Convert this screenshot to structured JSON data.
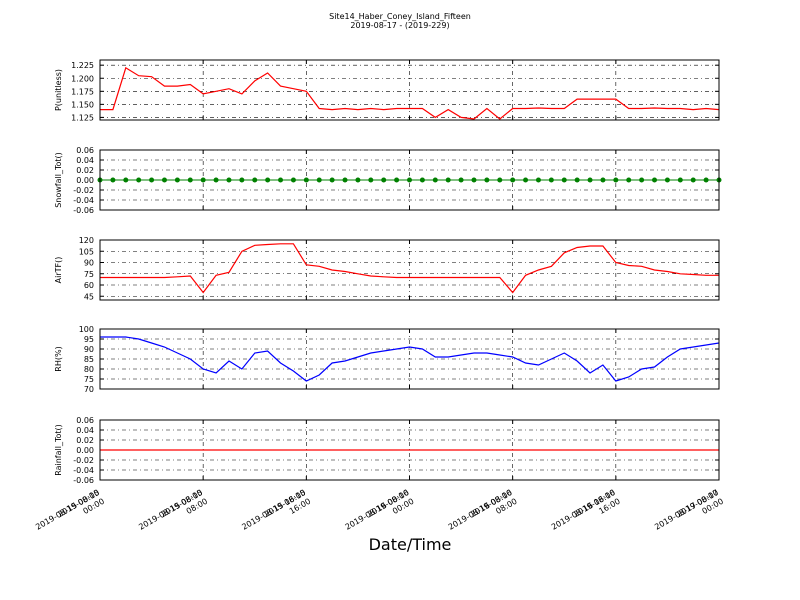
{
  "chart_data": [
    {
      "type": "line",
      "title": "Site14_Haber_Coney_Island_Fifteen",
      "subtitle": "2019-08-17 - (2019-229)",
      "ylabel": "P(unitless)",
      "x": [
        "2019-08-15 00:00",
        "2019-08-15 01:00",
        "2019-08-15 02:00",
        "2019-08-15 03:00",
        "2019-08-15 04:00",
        "2019-08-15 05:00",
        "2019-08-15 06:00",
        "2019-08-15 07:00",
        "2019-08-15 08:00",
        "2019-08-15 09:00",
        "2019-08-15 10:00",
        "2019-08-15 11:00",
        "2019-08-15 12:00",
        "2019-08-15 13:00",
        "2019-08-15 14:00",
        "2019-08-15 15:00",
        "2019-08-15 16:00",
        "2019-08-15 17:00",
        "2019-08-15 18:00",
        "2019-08-15 19:00",
        "2019-08-15 20:00",
        "2019-08-15 21:00",
        "2019-08-15 22:00",
        "2019-08-15 23:00",
        "2019-08-16 00:00",
        "2019-08-16 01:00",
        "2019-08-16 02:00",
        "2019-08-16 03:00",
        "2019-08-16 04:00",
        "2019-08-16 05:00",
        "2019-08-16 06:00",
        "2019-08-16 07:00",
        "2019-08-16 08:00",
        "2019-08-16 09:00",
        "2019-08-16 10:00",
        "2019-08-16 11:00",
        "2019-08-16 12:00",
        "2019-08-16 13:00",
        "2019-08-16 14:00",
        "2019-08-16 15:00",
        "2019-08-16 16:00",
        "2019-08-16 17:00",
        "2019-08-16 18:00",
        "2019-08-16 19:00",
        "2019-08-16 20:00",
        "2019-08-16 21:00",
        "2019-08-16 22:00",
        "2019-08-16 23:00",
        "2019-08-17 00:00"
      ],
      "series": [
        {
          "color": "#ff0000",
          "values": [
            1.14,
            1.14,
            1.22,
            1.205,
            1.203,
            1.185,
            1.185,
            1.188,
            1.17,
            1.175,
            1.18,
            1.17,
            1.195,
            1.21,
            1.185,
            1.18,
            1.175,
            1.142,
            1.14,
            1.142,
            1.14,
            1.142,
            1.14,
            1.142,
            1.142,
            1.142,
            1.125,
            1.14,
            1.125,
            1.122,
            1.142,
            1.122,
            1.142,
            1.142,
            1.143,
            1.142,
            1.142,
            1.16,
            1.16,
            1.16,
            1.16,
            1.142,
            1.142,
            1.143,
            1.142,
            1.142,
            1.14,
            1.142,
            1.14
          ]
        }
      ],
      "xlim": [
        "2019-08-15 00:00",
        "2019-08-17 00:00"
      ],
      "xticks": [
        "2019-08-15 00:00",
        "2019-08-15 08:00",
        "2019-08-15 16:00",
        "2019-08-16 00:00",
        "2019-08-16 08:00",
        "2019-08-16 16:00",
        "2019-08-17 00:00"
      ],
      "ylim": [
        1.12,
        1.235
      ],
      "yticks": [
        1.125,
        {
          "value": 1.15,
          "label": "1.150"
        },
        1.175,
        {
          "value": 1.2,
          "label": "1.200"
        },
        1.225
      ],
      "grid": true
    },
    {
      "type": "line",
      "ylabel": "Snowfall_Tot()",
      "marker": true,
      "x": [
        "2019-08-15 00:00",
        "2019-08-15 01:00",
        "2019-08-15 02:00",
        "2019-08-15 03:00",
        "2019-08-15 04:00",
        "2019-08-15 05:00",
        "2019-08-15 06:00",
        "2019-08-15 07:00",
        "2019-08-15 08:00",
        "2019-08-15 09:00",
        "2019-08-15 10:00",
        "2019-08-15 11:00",
        "2019-08-15 12:00",
        "2019-08-15 13:00",
        "2019-08-15 14:00",
        "2019-08-15 15:00",
        "2019-08-15 16:00",
        "2019-08-15 17:00",
        "2019-08-15 18:00",
        "2019-08-15 19:00",
        "2019-08-15 20:00",
        "2019-08-15 21:00",
        "2019-08-15 22:00",
        "2019-08-15 23:00",
        "2019-08-16 00:00",
        "2019-08-16 01:00",
        "2019-08-16 02:00",
        "2019-08-16 03:00",
        "2019-08-16 04:00",
        "2019-08-16 05:00",
        "2019-08-16 06:00",
        "2019-08-16 07:00",
        "2019-08-16 08:00",
        "2019-08-16 09:00",
        "2019-08-16 10:00",
        "2019-08-16 11:00",
        "2019-08-16 12:00",
        "2019-08-16 13:00",
        "2019-08-16 14:00",
        "2019-08-16 15:00",
        "2019-08-16 16:00",
        "2019-08-16 17:00",
        "2019-08-16 18:00",
        "2019-08-16 19:00",
        "2019-08-16 20:00",
        "2019-08-16 21:00",
        "2019-08-16 22:00",
        "2019-08-16 23:00",
        "2019-08-17 00:00"
      ],
      "series": [
        {
          "color": "#008000",
          "values": [
            0,
            0,
            0,
            0,
            0,
            0,
            0,
            0,
            0,
            0,
            0,
            0,
            0,
            0,
            0,
            0,
            0,
            0,
            0,
            0,
            0,
            0,
            0,
            0,
            0,
            0,
            0,
            0,
            0,
            0,
            0,
            0,
            0,
            0,
            0,
            0,
            0,
            0,
            0,
            0,
            0,
            0,
            0,
            0,
            0,
            0,
            0,
            0,
            0
          ]
        }
      ],
      "xlim": [
        "2019-08-15 00:00",
        "2019-08-17 00:00"
      ],
      "xticks": [
        "2019-08-15 00:00",
        "2019-08-15 08:00",
        "2019-08-15 16:00",
        "2019-08-16 00:00",
        "2019-08-16 08:00",
        "2019-08-16 16:00",
        "2019-08-17 00:00"
      ],
      "ylim": [
        -0.06,
        0.06
      ],
      "yticks": [
        -0.06,
        -0.04,
        -0.02,
        {
          "value": 0,
          "label": "0.00"
        },
        0.02,
        0.04,
        0.06
      ],
      "grid": true
    },
    {
      "type": "line",
      "ylabel": "AirTF()",
      "x": [
        "2019-08-15 00:00",
        "2019-08-15 01:00",
        "2019-08-15 02:00",
        "2019-08-15 03:00",
        "2019-08-15 04:00",
        "2019-08-15 05:00",
        "2019-08-15 06:00",
        "2019-08-15 07:00",
        "2019-08-15 08:00",
        "2019-08-15 09:00",
        "2019-08-15 10:00",
        "2019-08-15 11:00",
        "2019-08-15 12:00",
        "2019-08-15 13:00",
        "2019-08-15 14:00",
        "2019-08-15 15:00",
        "2019-08-15 16:00",
        "2019-08-15 17:00",
        "2019-08-15 18:00",
        "2019-08-15 19:00",
        "2019-08-15 20:00",
        "2019-08-15 21:00",
        "2019-08-15 22:00",
        "2019-08-15 23:00",
        "2019-08-16 00:00",
        "2019-08-16 01:00",
        "2019-08-16 02:00",
        "2019-08-16 03:00",
        "2019-08-16 04:00",
        "2019-08-16 05:00",
        "2019-08-16 06:00",
        "2019-08-16 07:00",
        "2019-08-16 08:00",
        "2019-08-16 09:00",
        "2019-08-16 10:00",
        "2019-08-16 11:00",
        "2019-08-16 12:00",
        "2019-08-16 13:00",
        "2019-08-16 14:00",
        "2019-08-16 15:00",
        "2019-08-16 16:00",
        "2019-08-16 17:00",
        "2019-08-16 18:00",
        "2019-08-16 19:00",
        "2019-08-16 20:00",
        "2019-08-16 21:00",
        "2019-08-16 22:00",
        "2019-08-16 23:00",
        "2019-08-17 00:00"
      ],
      "series": [
        {
          "color": "#ff0000",
          "values": [
            70,
            70,
            70,
            70,
            70,
            70,
            71,
            72,
            50,
            73,
            77,
            105,
            113,
            114,
            115,
            115,
            87,
            85,
            80,
            78,
            75,
            72,
            71,
            70,
            70,
            70,
            70,
            70,
            70,
            70,
            70,
            70,
            50,
            73,
            80,
            85,
            103,
            110,
            112,
            112,
            90,
            86,
            85,
            80,
            78,
            75,
            74,
            73,
            73
          ]
        }
      ],
      "xlim": [
        "2019-08-15 00:00",
        "2019-08-17 00:00"
      ],
      "xticks": [
        "2019-08-15 00:00",
        "2019-08-15 08:00",
        "2019-08-15 16:00",
        "2019-08-16 00:00",
        "2019-08-16 08:00",
        "2019-08-16 16:00",
        "2019-08-17 00:00"
      ],
      "ylim": [
        40,
        120
      ],
      "yticks": [
        45,
        60,
        75,
        90,
        105,
        120
      ],
      "grid": true
    },
    {
      "type": "line",
      "ylabel": "RH(%)",
      "x": [
        "2019-08-15 00:00",
        "2019-08-15 01:00",
        "2019-08-15 02:00",
        "2019-08-15 03:00",
        "2019-08-15 04:00",
        "2019-08-15 05:00",
        "2019-08-15 06:00",
        "2019-08-15 07:00",
        "2019-08-15 08:00",
        "2019-08-15 09:00",
        "2019-08-15 10:00",
        "2019-08-15 11:00",
        "2019-08-15 12:00",
        "2019-08-15 13:00",
        "2019-08-15 14:00",
        "2019-08-15 15:00",
        "2019-08-15 16:00",
        "2019-08-15 17:00",
        "2019-08-15 18:00",
        "2019-08-15 19:00",
        "2019-08-15 20:00",
        "2019-08-15 21:00",
        "2019-08-15 22:00",
        "2019-08-15 23:00",
        "2019-08-16 00:00",
        "2019-08-16 01:00",
        "2019-08-16 02:00",
        "2019-08-16 03:00",
        "2019-08-16 04:00",
        "2019-08-16 05:00",
        "2019-08-16 06:00",
        "2019-08-16 07:00",
        "2019-08-16 08:00",
        "2019-08-16 09:00",
        "2019-08-16 10:00",
        "2019-08-16 11:00",
        "2019-08-16 12:00",
        "2019-08-16 13:00",
        "2019-08-16 14:00",
        "2019-08-16 15:00",
        "2019-08-16 16:00",
        "2019-08-16 17:00",
        "2019-08-16 18:00",
        "2019-08-16 19:00",
        "2019-08-16 20:00",
        "2019-08-16 21:00",
        "2019-08-16 22:00",
        "2019-08-16 23:00",
        "2019-08-17 00:00"
      ],
      "series": [
        {
          "color": "#0000ff",
          "values": [
            96,
            96,
            96,
            95,
            93,
            91,
            88,
            85,
            80,
            78,
            84,
            80,
            88,
            89,
            83,
            79,
            74,
            77,
            83,
            84,
            86,
            88,
            89,
            90,
            91,
            90,
            86,
            86,
            87,
            88,
            88,
            87,
            86,
            83,
            82,
            85,
            88,
            84,
            78,
            82,
            74,
            76,
            80,
            81,
            86,
            90,
            91,
            92,
            93
          ]
        }
      ],
      "xlim": [
        "2019-08-15 00:00",
        "2019-08-17 00:00"
      ],
      "xticks": [
        "2019-08-15 00:00",
        "2019-08-15 08:00",
        "2019-08-15 16:00",
        "2019-08-16 00:00",
        "2019-08-16 08:00",
        "2019-08-16 16:00",
        "2019-08-17 00:00"
      ],
      "ylim": [
        70,
        100
      ],
      "yticks": [
        70,
        75,
        80,
        85,
        90,
        95,
        100
      ],
      "grid": true
    },
    {
      "type": "line",
      "ylabel": "Rainfall_Tot()",
      "xlabel": "Date/Time",
      "x": [
        "2019-08-15 00:00",
        "2019-08-15 01:00",
        "2019-08-15 02:00",
        "2019-08-15 03:00",
        "2019-08-15 04:00",
        "2019-08-15 05:00",
        "2019-08-15 06:00",
        "2019-08-15 07:00",
        "2019-08-15 08:00",
        "2019-08-15 09:00",
        "2019-08-15 10:00",
        "2019-08-15 11:00",
        "2019-08-15 12:00",
        "2019-08-15 13:00",
        "2019-08-15 14:00",
        "2019-08-15 15:00",
        "2019-08-15 16:00",
        "2019-08-15 17:00",
        "2019-08-15 18:00",
        "2019-08-15 19:00",
        "2019-08-15 20:00",
        "2019-08-15 21:00",
        "2019-08-15 22:00",
        "2019-08-15 23:00",
        "2019-08-16 00:00",
        "2019-08-16 01:00",
        "2019-08-16 02:00",
        "2019-08-16 03:00",
        "2019-08-16 04:00",
        "2019-08-16 05:00",
        "2019-08-16 06:00",
        "2019-08-16 07:00",
        "2019-08-16 08:00",
        "2019-08-16 09:00",
        "2019-08-16 10:00",
        "2019-08-16 11:00",
        "2019-08-16 12:00",
        "2019-08-16 13:00",
        "2019-08-16 14:00",
        "2019-08-16 15:00",
        "2019-08-16 16:00",
        "2019-08-16 17:00",
        "2019-08-16 18:00",
        "2019-08-16 19:00",
        "2019-08-16 20:00",
        "2019-08-16 21:00",
        "2019-08-16 22:00",
        "2019-08-16 23:00",
        "2019-08-17 00:00"
      ],
      "series": [
        {
          "color": "#ff0000",
          "values": [
            0,
            0,
            0,
            0,
            0,
            0,
            0,
            0,
            0,
            0,
            0,
            0,
            0,
            0,
            0,
            0,
            0,
            0,
            0,
            0,
            0,
            0,
            0,
            0,
            0,
            0,
            0,
            0,
            0,
            0,
            0,
            0,
            0,
            0,
            0,
            0,
            0,
            0,
            0,
            0,
            0,
            0,
            0,
            0,
            0,
            0,
            0,
            0,
            0
          ]
        }
      ],
      "xlim": [
        "2019-08-15 00:00",
        "2019-08-17 00:00"
      ],
      "xticks": [
        "2019-08-15 00:00",
        "2019-08-15 08:00",
        "2019-08-15 16:00",
        "2019-08-16 00:00",
        "2019-08-16 08:00",
        "2019-08-16 16:00",
        "2019-08-17 00:00"
      ],
      "ylim": [
        -0.06,
        0.06
      ],
      "yticks": [
        -0.06,
        -0.04,
        -0.02,
        {
          "value": 0,
          "label": "0.00"
        },
        0.02,
        0.04,
        0.06
      ],
      "grid": true
    }
  ]
}
